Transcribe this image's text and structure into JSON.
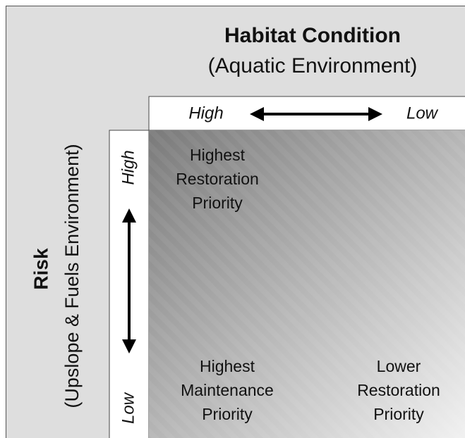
{
  "header": {
    "title": "Habitat Condition",
    "subtitle": "(Aquatic Environment)"
  },
  "top_axis": {
    "high": "High",
    "low": "Low"
  },
  "left_axis": {
    "high": "High",
    "low": "Low"
  },
  "side_label": {
    "title": "Risk",
    "subtitle": "(Upslope & Fuels Environment)"
  },
  "quadrants": [
    {
      "lines": [
        "Highest",
        "Restoration",
        "Priority"
      ]
    },
    {
      "lines": [
        "Highest",
        "Maintenance",
        "Priority"
      ]
    },
    {
      "lines": [
        "Lower",
        "Restoration",
        "Priority"
      ]
    }
  ]
}
